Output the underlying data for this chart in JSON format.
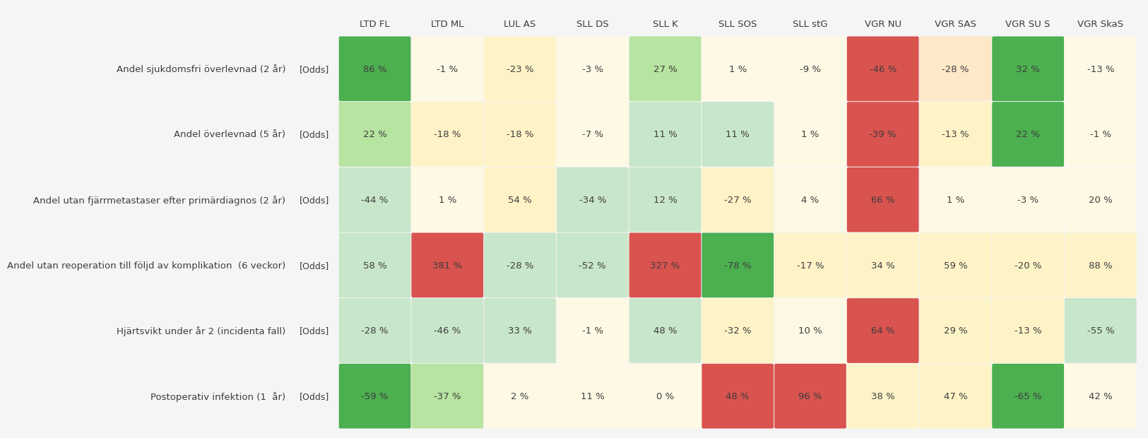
{
  "columns": [
    "LTD FL",
    "LTD ML",
    "LUL AS",
    "SLL DS",
    "SLL K",
    "SLL SOS",
    "SLL stG",
    "VGR NU",
    "VGR SAS",
    "VGR SU S",
    "VGR SkaS"
  ],
  "rows": [
    "Andel sjukdomsfri överlevnad (2 år)",
    "Andel överlevnad (5 år)",
    "Andel utan fjärrmetastaser efter primärdiagnos (2 år)",
    "Andel utan reoperation till följd av komplikation  (6 veckor)",
    "Hjärtsvikt under år 2 (incidenta fall)",
    "Postoperativ infektion (1  år)"
  ],
  "values": [
    [
      86,
      -1,
      -23,
      -3,
      27,
      1,
      -9,
      -46,
      -28,
      32,
      -13
    ],
    [
      22,
      -18,
      -18,
      -7,
      11,
      11,
      1,
      -39,
      -13,
      22,
      -1
    ],
    [
      -44,
      1,
      54,
      -34,
      12,
      -27,
      4,
      66,
      1,
      -3,
      20
    ],
    [
      58,
      381,
      -28,
      -52,
      327,
      -78,
      -17,
      34,
      59,
      -20,
      88
    ],
    [
      -28,
      -46,
      33,
      -1,
      48,
      -32,
      10,
      64,
      29,
      -13,
      -55
    ],
    [
      -59,
      -37,
      2,
      11,
      0,
      48,
      96,
      38,
      47,
      -65,
      42
    ]
  ],
  "cell_colors": [
    [
      "#4caf50",
      "#fef9e4",
      "#fef3c7",
      "#fef9e4",
      "#b7e4a0",
      "#fef9e4",
      "#fef9e4",
      "#d9534f",
      "#fde8c8",
      "#4caf50",
      "#fef9e4"
    ],
    [
      "#b7e4a0",
      "#fef3c7",
      "#fef3c7",
      "#fef9e4",
      "#c8e6c9",
      "#c8e6c9",
      "#fef9e4",
      "#d9534f",
      "#fef3c7",
      "#4caf50",
      "#fef9e4"
    ],
    [
      "#c8e6c9",
      "#fef9e4",
      "#fef3c7",
      "#c8e6c9",
      "#c8e6c9",
      "#fef3c7",
      "#fef9e4",
      "#d9534f",
      "#fef9e4",
      "#fef9e4",
      "#fef9e4"
    ],
    [
      "#c8e6c9",
      "#d9534f",
      "#c8e6c9",
      "#c8e6c9",
      "#d9534f",
      "#4caf50",
      "#fef3c7",
      "#fef3c7",
      "#fef3c7",
      "#fef3c7",
      "#fef3c7"
    ],
    [
      "#c8e6c9",
      "#c8e6c9",
      "#c8e6c9",
      "#fef9e4",
      "#c8e6c9",
      "#fef3c7",
      "#fef9e4",
      "#d9534f",
      "#fef3c7",
      "#fef3c7",
      "#c8e6c9"
    ],
    [
      "#4caf50",
      "#b7e4a0",
      "#fef9e4",
      "#fef9e4",
      "#fef9e4",
      "#d9534f",
      "#d9534f",
      "#fef3c7",
      "#fef3c7",
      "#4caf50",
      "#fef9e4"
    ]
  ],
  "label_suffix": "[Odds]",
  "background_color": "#f5f5f5",
  "text_color": "#3d3d3d",
  "figsize": [
    15.51,
    6.01
  ],
  "dpi": 100
}
